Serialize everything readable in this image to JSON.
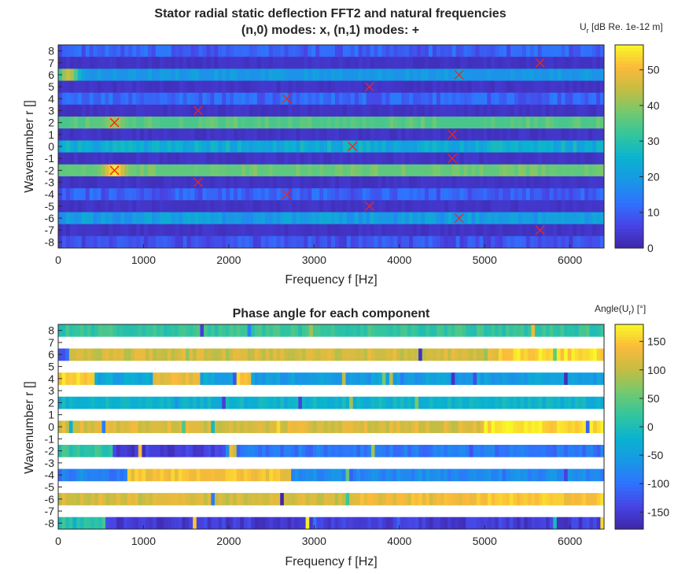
{
  "chart_data": [
    {
      "type": "heatmap",
      "title": "Stator radial static deflection FFT2 and natural frequencies",
      "subtitle": "(n,0) modes: x, (n,1) modes: +",
      "xlabel": "Frequency f [Hz]",
      "ylabel": "Wavenumber r []",
      "colorbar_label": "U_r [dB Re. 1e-12 m]",
      "colorbar_label_main": "U",
      "colorbar_label_sub": "r",
      "colorbar_label_rest": " [dB Re. 1e-12 m]",
      "xlim": [
        0,
        6400
      ],
      "ylim": [
        -8.5,
        8.5
      ],
      "clim": [
        0,
        57
      ],
      "x_ticks": [
        "0",
        "1000",
        "2000",
        "3000",
        "4000",
        "5000",
        "6000"
      ],
      "y_ticks": [
        "8",
        "7",
        "6",
        "5",
        "4",
        "3",
        "2",
        "1",
        "0",
        "-1",
        "-2",
        "-3",
        "-4",
        "-5",
        "-6",
        "-7",
        "-8"
      ],
      "colorbar_ticks": [
        "0",
        "10",
        "20",
        "30",
        "40",
        "50"
      ],
      "colormap": [
        "#3e26a8",
        "#4744e5",
        "#2f73fe",
        "#1898e5",
        "#0ab3cf",
        "#32c59e",
        "#73c96f",
        "#c4bd43",
        "#fbba3b",
        "#f9f926"
      ],
      "rows": [
        {
          "r": 8,
          "level": 10,
          "stripe": true
        },
        {
          "r": 7,
          "level": 3
        },
        {
          "r": 6,
          "level": 18,
          "stripe": true
        },
        {
          "r": 5,
          "level": 3
        },
        {
          "r": 4,
          "level": 11,
          "stripe": true
        },
        {
          "r": 3,
          "level": 3
        },
        {
          "r": 2,
          "level": 34,
          "stripe": true
        },
        {
          "r": 1,
          "level": 3
        },
        {
          "r": 0,
          "level": 24,
          "stripe": true
        },
        {
          "r": -1,
          "level": 3
        },
        {
          "r": -2,
          "level": 36,
          "stripe": true
        },
        {
          "r": -3,
          "level": 3
        },
        {
          "r": -4,
          "level": 10,
          "stripe": true
        },
        {
          "r": -5,
          "level": 3
        },
        {
          "r": -6,
          "level": 20,
          "stripe": true
        },
        {
          "r": -7,
          "level": 3
        },
        {
          "r": -8,
          "level": 8,
          "stripe": true
        }
      ],
      "hot_spots": [
        {
          "r": -2,
          "f": 660,
          "level": 55
        },
        {
          "r": 6,
          "f": 120,
          "level": 45
        },
        {
          "r": 2,
          "f": 660,
          "level": 42
        }
      ],
      "markers": [
        {
          "f": 660,
          "r": 2
        },
        {
          "f": 660,
          "r": -2
        },
        {
          "f": 1640,
          "r": 3
        },
        {
          "f": 1640,
          "r": -3
        },
        {
          "f": 2680,
          "r": 4
        },
        {
          "f": 2680,
          "r": -4
        },
        {
          "f": 3450,
          "r": 0
        },
        {
          "f": 3650,
          "r": 5
        },
        {
          "f": 3650,
          "r": -5
        },
        {
          "f": 4620,
          "r": 1
        },
        {
          "f": 4620,
          "r": -1
        },
        {
          "f": 4700,
          "r": 6
        },
        {
          "f": 4700,
          "r": -6
        },
        {
          "f": 5650,
          "r": 7
        },
        {
          "f": 5650,
          "r": -7
        }
      ]
    },
    {
      "type": "heatmap",
      "title": "Phase angle for each component",
      "xlabel": "Frequency f [Hz]",
      "ylabel": "Wavenumber r []",
      "colorbar_label": "Angle(U_r) [°]",
      "colorbar_label_main": "Angle(U",
      "colorbar_label_sub": "r",
      "colorbar_label_rest": ") [°]",
      "xlim": [
        0,
        6400
      ],
      "ylim": [
        -8.5,
        8.5
      ],
      "clim": [
        -180,
        180
      ],
      "x_ticks": [
        "0",
        "1000",
        "2000",
        "3000",
        "4000",
        "5000",
        "6000"
      ],
      "y_ticks": [
        "8",
        "7",
        "6",
        "5",
        "4",
        "3",
        "2",
        "1",
        "0",
        "-1",
        "-2",
        "-3",
        "-4",
        "-5",
        "-6",
        "-7",
        "-8"
      ],
      "colorbar_ticks": [
        "150",
        "100",
        "50",
        "0",
        "-50",
        "-100",
        "-150"
      ],
      "colormap": [
        "#3e26a8",
        "#4744e5",
        "#2f73fe",
        "#1898e5",
        "#0ab3cf",
        "#32c59e",
        "#73c96f",
        "#c4bd43",
        "#fbba3b",
        "#f9f926"
      ],
      "rows": [
        {
          "r": 8,
          "segments": [
            {
              "from": 0,
              "to": 6400,
              "angle": 20
            }
          ]
        },
        {
          "r": 6,
          "segments": [
            {
              "from": 0,
              "to": 130,
              "angle": -110
            },
            {
              "from": 130,
              "to": 5150,
              "angle": 110
            },
            {
              "from": 5150,
              "to": 6400,
              "angle": 160
            }
          ]
        },
        {
          "r": 4,
          "segments": [
            {
              "from": 0,
              "to": 420,
              "angle": 150
            },
            {
              "from": 420,
              "to": 1100,
              "angle": -40
            },
            {
              "from": 1100,
              "to": 1650,
              "angle": 130
            },
            {
              "from": 1650,
              "to": 2050,
              "angle": -40
            },
            {
              "from": 2050,
              "to": 2250,
              "angle": 150
            },
            {
              "from": 2250,
              "to": 6400,
              "angle": -50
            }
          ]
        },
        {
          "r": 2,
          "segments": [
            {
              "from": 0,
              "to": 6400,
              "angle": -20
            }
          ]
        },
        {
          "r": 0,
          "segments": [
            {
              "from": 0,
              "to": 5000,
              "angle": 115
            },
            {
              "from": 5000,
              "to": 6400,
              "angle": 165
            }
          ]
        },
        {
          "r": -2,
          "segments": [
            {
              "from": 0,
              "to": 650,
              "angle": 20
            },
            {
              "from": 650,
              "to": 2000,
              "angle": -150
            },
            {
              "from": 2000,
              "to": 2100,
              "angle": 120
            },
            {
              "from": 2100,
              "to": 6400,
              "angle": -95
            }
          ]
        },
        {
          "r": -4,
          "segments": [
            {
              "from": 0,
              "to": 800,
              "angle": -90
            },
            {
              "from": 800,
              "to": 2750,
              "angle": 140
            },
            {
              "from": 2750,
              "to": 6400,
              "angle": -75
            }
          ]
        },
        {
          "r": -6,
          "segments": [
            {
              "from": 0,
              "to": 3450,
              "angle": 110
            },
            {
              "from": 3450,
              "to": 4900,
              "angle": 130
            },
            {
              "from": 4900,
              "to": 6400,
              "angle": 145
            }
          ]
        },
        {
          "r": -8,
          "segments": [
            {
              "from": 0,
              "to": 550,
              "angle": 15
            },
            {
              "from": 550,
              "to": 6400,
              "angle": -150
            }
          ]
        }
      ]
    }
  ]
}
